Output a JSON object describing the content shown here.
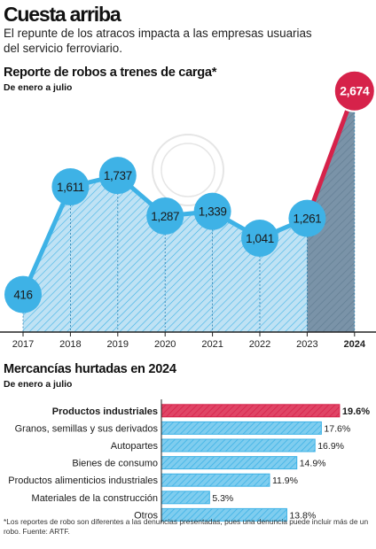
{
  "header": {
    "title": "Cuesta arriba",
    "subtitle": "El repunte de los atracos impacta a las empresas usuarias del servicio ferroviario."
  },
  "colors": {
    "blue": "#3eb2e6",
    "light_blue": "#bfe2f4",
    "highlight_red": "#d6224a",
    "dark_area": "#7a93a8",
    "axis": "#222222"
  },
  "chart_data": [
    {
      "type": "area",
      "title": "Reporte de robos a trenes de carga*",
      "subtitle": "De enero a julio",
      "x": [
        "2017",
        "2018",
        "2019",
        "2020",
        "2021",
        "2022",
        "2023",
        "2024"
      ],
      "values": [
        416,
        1611,
        1737,
        1287,
        1339,
        1041,
        1261,
        2674
      ],
      "value_labels": [
        "416",
        "1,611",
        "1,737",
        "1,287",
        "1,339",
        "1,041",
        "1,261",
        "2,674"
      ],
      "highlight": "2024",
      "ylim": [
        0,
        2750
      ],
      "grid": false,
      "legend": "none"
    },
    {
      "type": "bar",
      "orientation": "horizontal",
      "title": "Mercancías hurtadas en 2024",
      "subtitle": "De enero a julio",
      "categories": [
        "Productos industriales",
        "Granos, semillas y sus derivados",
        "Autopartes",
        "Bienes de consumo",
        "Productos alimenticios industriales",
        "Materiales de la construcción",
        "Otros"
      ],
      "values": [
        19.6,
        17.6,
        16.9,
        14.9,
        11.9,
        5.3,
        13.8
      ],
      "value_labels": [
        "19.6%",
        "17.6%",
        "16.9%",
        "14.9%",
        "11.9%",
        "5.3%",
        "13.8%"
      ],
      "highlight": "Productos industriales",
      "unit": "%"
    }
  ],
  "footnote": "*Los reportes de robo son diferentes a las denuncias presentadas, pues una denuncia puede incluir más de un robo. Fuente: ARTF."
}
